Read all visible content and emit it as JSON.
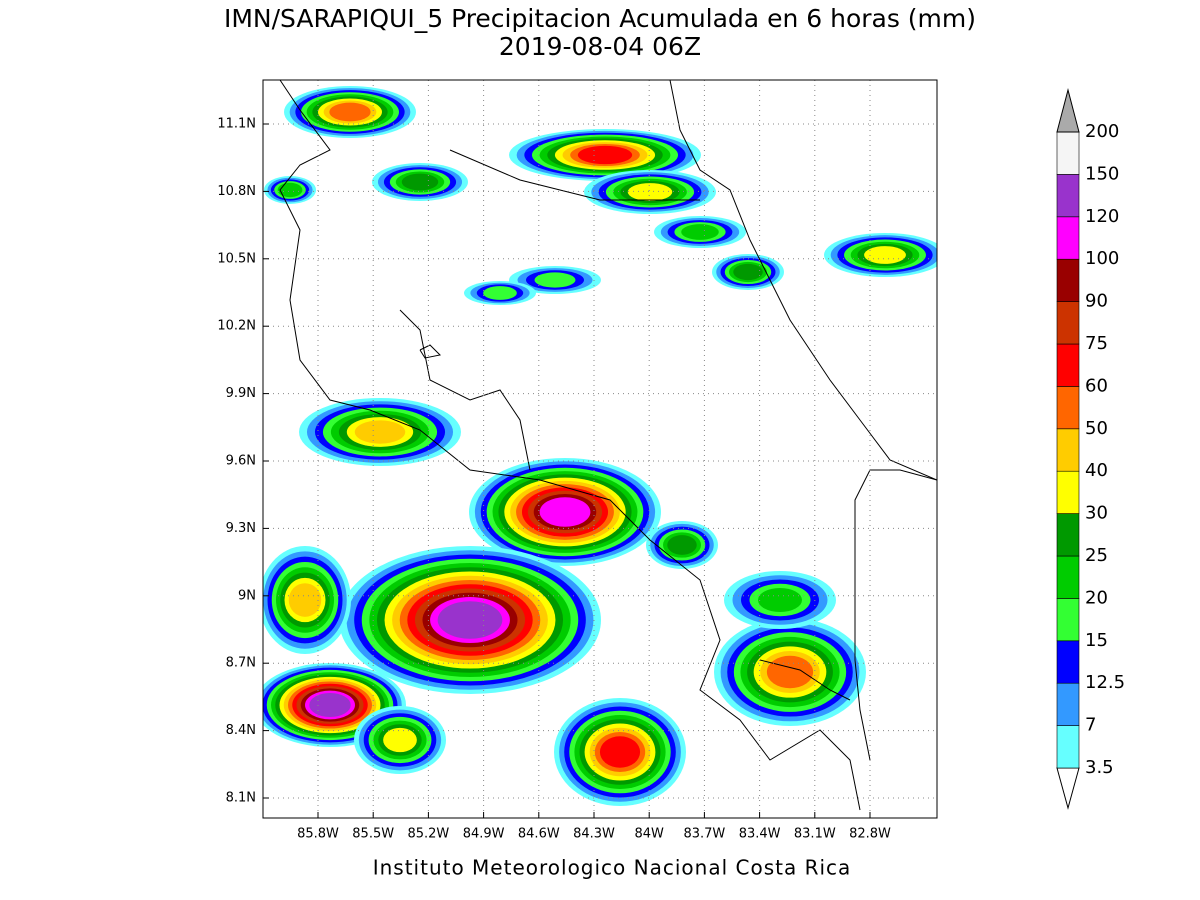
{
  "title": "IMN/SARAPIQUI_5 Precipitacion Acumulada en 6 horas (mm)",
  "subtitle": "2019-08-04 06Z",
  "lon_labels": [
    "85.8W",
    "85.5W",
    "85.2W",
    "84.9W",
    "84.6W",
    "84.3W",
    "84W",
    "83.7W",
    "83.4W",
    "83.1W",
    "82.8W"
  ],
  "lat_labels": [
    "11.1N",
    "10.8N",
    "10.5N",
    "10.2N",
    "9.9N",
    "9.6N",
    "9.3N",
    "9N",
    "8.7N",
    "8.4N",
    "8.1N"
  ],
  "colorbar": {
    "levels": [
      3.5,
      7,
      12.5,
      15,
      20,
      25,
      30,
      40,
      50,
      60,
      75,
      90,
      100,
      120,
      150,
      200
    ],
    "colors": [
      "#ffffff",
      "#66ffff",
      "#3399ff",
      "#0000ff",
      "#33ff33",
      "#00cc00",
      "#009900",
      "#ffff00",
      "#ffcc00",
      "#ff6600",
      "#ff0000",
      "#cc3300",
      "#990000",
      "#ff00ff",
      "#9933cc",
      "#f5f5f5",
      "#aaaaaa"
    ]
  },
  "footer": "Instituto Meteorologico Nacional Costa Rica"
}
